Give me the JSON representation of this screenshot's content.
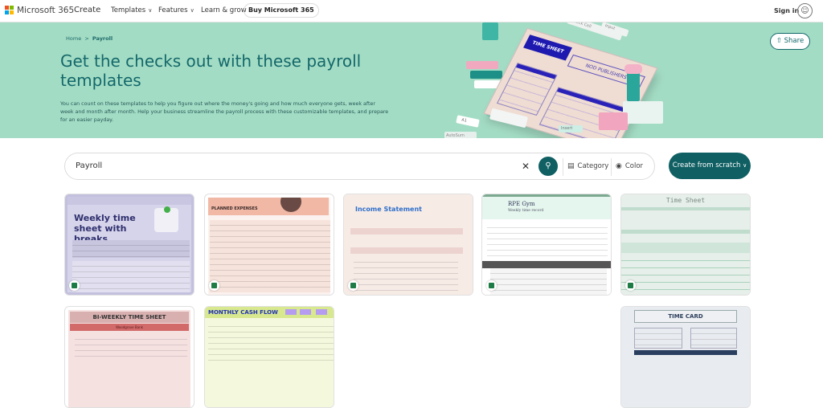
{
  "header": {
    "brand": "Microsoft 365",
    "nav": [
      {
        "label": "Create"
      },
      {
        "label": "Templates"
      },
      {
        "label": "Features"
      },
      {
        "label": "Learn & grow"
      }
    ],
    "buy_label": "Buy Microsoft 365",
    "signin_label": "Sign in",
    "logo_colors": [
      "#f25022",
      "#7fba00",
      "#00a4ef",
      "#ffb900"
    ]
  },
  "hero": {
    "breadcrumb": [
      "Home",
      "Payroll"
    ],
    "title": "Get the checks out with these payroll templates",
    "description": "You can count on these templates to help you figure out where the money's going and how much everyone gets, week after week and month after month. Help your business streamline the payroll process with these customizable templates, and prepare for an easier payday.",
    "share_label": "Share",
    "illustration": {
      "sheet_title": "TIME SHEET",
      "sheet_company": "NOD PUBLISHERS",
      "tags": [
        "Check Cell",
        "Input",
        "AutoSum",
        "A1",
        "Insert"
      ]
    },
    "bg_color": "#a3dcc4"
  },
  "search": {
    "value": "Payroll",
    "category_label": "Category",
    "color_label": "Color",
    "create_label": "Create from scratch",
    "accent": "#0f5f63"
  },
  "templates": [
    {
      "title": "Weekly time sheet with breaks",
      "app": "excel"
    },
    {
      "title": "PLANNED EXPENSES",
      "app": "excel"
    },
    {
      "title": "Income Statement",
      "app": "excel"
    },
    {
      "title": "RPE Gym",
      "subtitle": "Weekly time record",
      "app": "excel"
    },
    {
      "title": "Time Sheet",
      "app": "excel"
    },
    {
      "title": "BI-WEEKLY TIME SHEET",
      "subtitle": "Woodgrove Bank",
      "app": "excel"
    },
    {
      "title": "MONTHLY CASH FLOW",
      "app": "excel"
    },
    {
      "title": "TIME CARD",
      "app": "excel"
    }
  ]
}
